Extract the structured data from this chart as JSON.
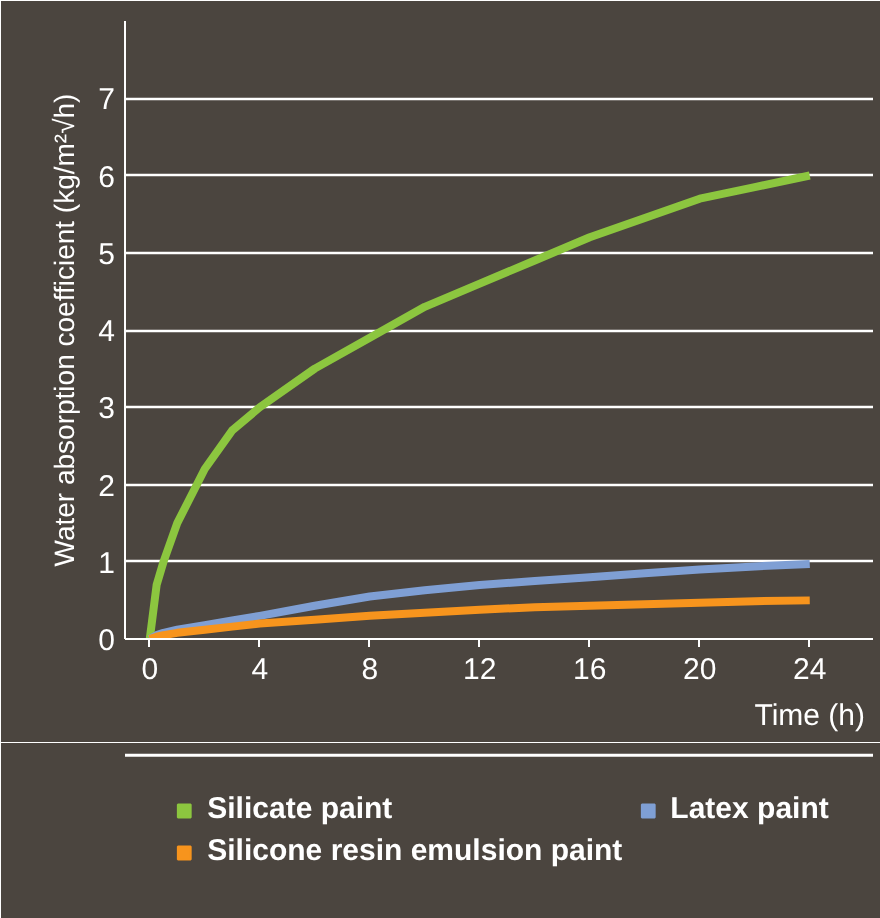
{
  "chart_data": {
    "type": "line",
    "xlabel": "Time (h)",
    "ylabel": "Water absorption coefficient (kg/m²√h)",
    "x": [
      0,
      0.25,
      0.5,
      1,
      2,
      3,
      4,
      6,
      8,
      10,
      12,
      14,
      16,
      18,
      20,
      22,
      24
    ],
    "xlim": [
      -0.9,
      26.3
    ],
    "ylim": [
      0,
      8
    ],
    "xticks": [
      0,
      4,
      8,
      12,
      16,
      20,
      24
    ],
    "yticks": [
      0,
      1,
      2,
      3,
      4,
      5,
      6,
      7
    ],
    "grid": "y",
    "legend": "bottom",
    "marker": "none",
    "line_style": "solid",
    "series": [
      {
        "name": "Silicate paint",
        "color": "#8cc63f",
        "values": [
          0,
          0.7,
          1.0,
          1.5,
          2.2,
          2.7,
          3.0,
          3.5,
          3.9,
          4.3,
          4.6,
          4.9,
          5.2,
          5.45,
          5.7,
          5.85,
          6.0
        ]
      },
      {
        "name": "Latex paint",
        "color": "#7f9fd4",
        "values": [
          0,
          0.05,
          0.08,
          0.12,
          0.18,
          0.24,
          0.3,
          0.43,
          0.55,
          0.63,
          0.7,
          0.75,
          0.8,
          0.85,
          0.9,
          0.94,
          0.97
        ]
      },
      {
        "name": "Silicone resin emulsion paint",
        "color": "#f7941d",
        "values": [
          0,
          0.03,
          0.05,
          0.08,
          0.12,
          0.16,
          0.2,
          0.25,
          0.3,
          0.34,
          0.38,
          0.41,
          0.43,
          0.45,
          0.47,
          0.49,
          0.5
        ]
      }
    ]
  }
}
